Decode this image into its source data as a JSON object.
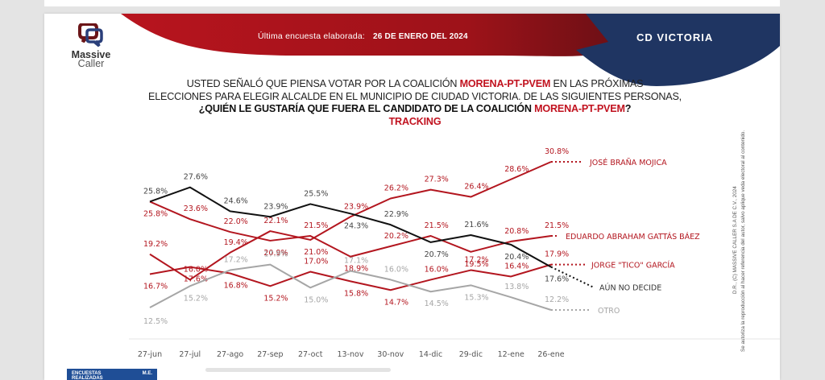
{
  "header": {
    "survey_label": "Última encuesta elaborada:",
    "survey_date": "26 DE ENERO DEL 2024",
    "city": "CD  VICTORIA",
    "colors": {
      "red": "#b3161f",
      "navy": "#1f3562"
    }
  },
  "logo": {
    "line1": "Massive",
    "line2": "Caller"
  },
  "question": {
    "p1": "USTED SEÑALÓ QUE PIENSA VOTAR POR LA COALICIÓN ",
    "p1_red": "MORENA-PT-PVEM",
    "p1_end": " EN LAS PRÓXIMAS",
    "p2": "ELECCIONES PARA ELEGIR ALCALDE EN EL MUNICIPIO DE CIUDAD VICTORIA. DE LAS SIGUIENTES PERSONAS,",
    "p3": "¿QUIÉN LE GUSTARÍA QUE FUERA EL CANDIDATO DE LA COALICIÓN ",
    "p3_red": "MORENA-PT-PVEM",
    "p3_end": "?",
    "tracking": "TRACKING"
  },
  "side_note": {
    "line1": "D.R., (C) MASSIVE CALLER S.A DE C.V., 2024",
    "line2": "Se autoriza la reproducción al hacer referencia del autor, salvo aplique veda electoral al contenido."
  },
  "footer": {
    "col1": "ENCUESTAS REALIZADAS",
    "col2": "M.E."
  },
  "chart_data": {
    "type": "line",
    "title": "TRACKING",
    "xlabel": "",
    "ylabel": "",
    "ylim": [
      10,
      32
    ],
    "grid": false,
    "legend": "right",
    "categories": [
      "27-jun",
      "27-jul",
      "27-ago",
      "27-sep",
      "27-oct",
      "13-nov",
      "30-nov",
      "14-dic",
      "29-dic",
      "12-ene",
      "26-ene"
    ],
    "series": [
      {
        "name": "JOSÉ BRAÑA MOJICA",
        "color": "#b3161f",
        "values": [
          19.2,
          16.0,
          19.4,
          22.1,
          21.0,
          23.9,
          26.2,
          27.3,
          26.4,
          28.6,
          30.8
        ]
      },
      {
        "name": "EDUARDO ABRAHAM GATTÁS BÁEZ",
        "color": "#b3161f",
        "values": [
          25.8,
          23.6,
          22.0,
          20.9,
          21.5,
          18.9,
          20.2,
          21.5,
          19.5,
          20.8,
          21.5
        ]
      },
      {
        "name": "JORGE \"TICO\" GARCÍA",
        "color": "#b3161f",
        "values": [
          16.7,
          17.6,
          16.8,
          15.2,
          17.0,
          15.8,
          14.7,
          16.0,
          17.2,
          16.4,
          17.9
        ]
      },
      {
        "name": "AÚN NO DECIDE",
        "color": "#111111",
        "values": [
          25.8,
          27.6,
          24.6,
          23.9,
          25.5,
          24.3,
          22.9,
          20.7,
          21.6,
          20.4,
          17.6
        ]
      },
      {
        "name": "OTRO",
        "color": "#a6a6a6",
        "values": [
          12.5,
          15.2,
          17.2,
          17.9,
          15.0,
          17.1,
          16.0,
          14.5,
          15.3,
          13.8,
          12.2
        ]
      }
    ]
  }
}
